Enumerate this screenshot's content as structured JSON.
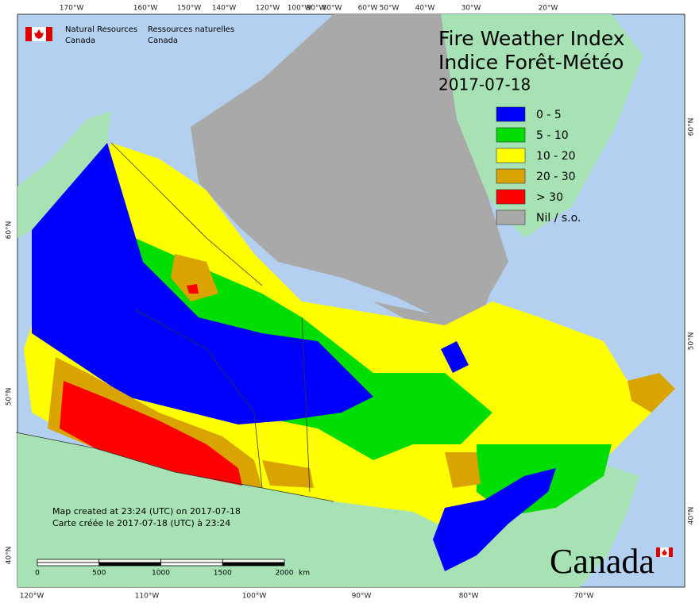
{
  "header": {
    "agency_en": [
      "Natural Resources",
      "Canada"
    ],
    "agency_fr": [
      "Ressources naturelles",
      "Canada"
    ]
  },
  "title": [
    "Fire Weather Index",
    "Indice Forêt-Météo"
  ],
  "date": "2017-07-18",
  "legend": [
    {
      "label": "0 - 5",
      "color": "#0000ff"
    },
    {
      "label": "5 - 10",
      "color": "#00dd00"
    },
    {
      "label": "10 - 20",
      "color": "#ffff00"
    },
    {
      "label": "20 - 30",
      "color": "#d9a300"
    },
    {
      "label": "> 30",
      "color": "#ff0000"
    },
    {
      "label": "Nil / s.o.",
      "color": "#a9a9a9"
    }
  ],
  "notes": [
    "Map created at 23:24 (UTC) on 2017-07-18",
    "Carte créée le 2017-07-18 (UTC) à 23:24"
  ],
  "scale": {
    "labels": [
      "0",
      "500",
      "1000",
      "1500",
      "2000"
    ],
    "unit": "km"
  },
  "wordmark": "Canada",
  "graticule": {
    "top": [
      "170°W",
      "160°W",
      "150°W",
      "140°W",
      "120°W",
      "100°W",
      "90°W",
      "80°W",
      "60°W",
      "50°W",
      "40°W",
      "30°W",
      "20°W"
    ],
    "bottom": [
      "120°W",
      "110°W",
      "100°W",
      "90°W",
      "80°W",
      "70°W"
    ],
    "left": [
      "60°N",
      "50°N",
      "40°N"
    ],
    "right": [
      "60°N",
      "50°N",
      "40°N"
    ]
  }
}
